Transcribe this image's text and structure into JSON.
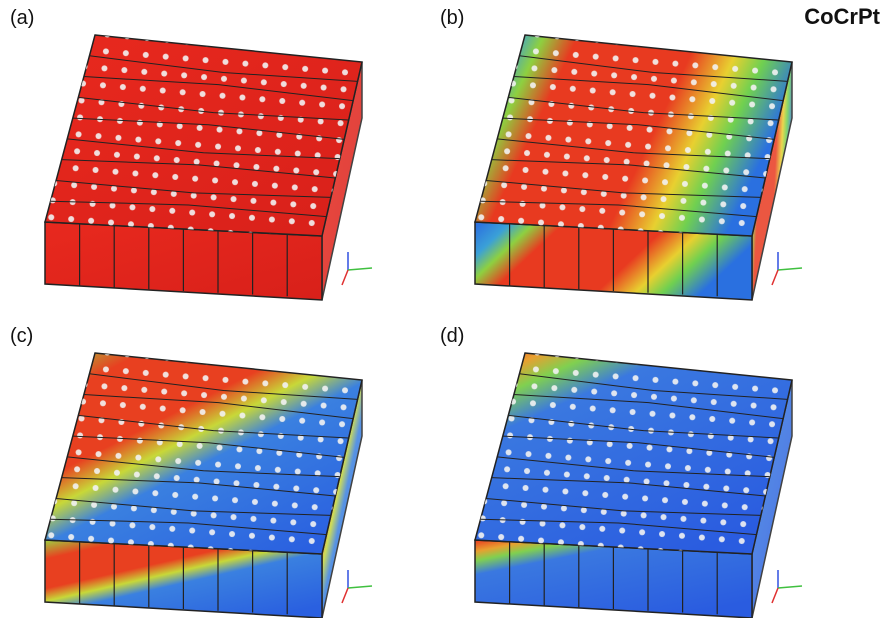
{
  "title": "CoCrPt",
  "panels": [
    {
      "label": "(a)"
    },
    {
      "label": "(b)"
    },
    {
      "label": "(c)"
    },
    {
      "label": "(d)"
    }
  ]
}
